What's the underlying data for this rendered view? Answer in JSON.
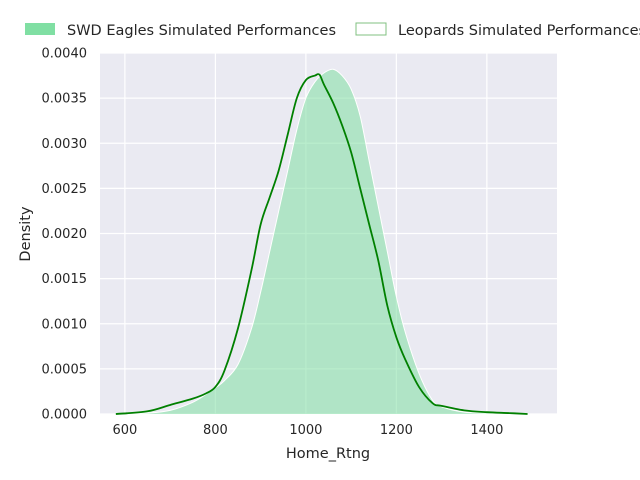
{
  "chart_data": {
    "type": "area",
    "title": "",
    "xlabel": "Home_Rtng",
    "ylabel": "Density",
    "xlim": [
      545,
      1555
    ],
    "ylim": [
      0,
      0.004
    ],
    "xticks": [
      600,
      800,
      1000,
      1200,
      1400
    ],
    "xtick_labels": [
      "600",
      "800",
      "1000",
      "1200",
      "1400"
    ],
    "yticks": [
      0,
      0.0005,
      0.001,
      0.0015,
      0.002,
      0.0025,
      0.003,
      0.0035,
      0.004
    ],
    "ytick_labels": [
      "0.0000",
      "0.0005",
      "0.0010",
      "0.0015",
      "0.0020",
      "0.0025",
      "0.0030",
      "0.0035",
      "0.0040"
    ],
    "grid": true,
    "legend_position": "top",
    "series": [
      {
        "name": "SWD Eagles Simulated Performances",
        "kind": "filled-kde",
        "color": "#80dfa3",
        "fill_opacity": 0.55,
        "x": [
          580,
          650,
          700,
          750,
          780,
          800,
          820,
          850,
          880,
          900,
          920,
          940,
          960,
          980,
          1000,
          1020,
          1040,
          1060,
          1080,
          1100,
          1120,
          1140,
          1160,
          1180,
          1200,
          1220,
          1250,
          1280,
          1300,
          1350,
          1400,
          1450,
          1490
        ],
        "y": [
          0.0,
          1e-05,
          4e-05,
          0.00013,
          0.00022,
          0.00029,
          0.00037,
          0.00055,
          0.00095,
          0.00135,
          0.0018,
          0.00225,
          0.0027,
          0.00315,
          0.0035,
          0.00368,
          0.00378,
          0.00382,
          0.00375,
          0.0036,
          0.0033,
          0.0028,
          0.0023,
          0.0018,
          0.0013,
          0.0009,
          0.00045,
          0.00015,
          8e-05,
          2e-05,
          1e-05,
          0.0,
          0.0
        ]
      },
      {
        "name": "Leopards Simulated Performances",
        "kind": "line-kde",
        "color": "#008000",
        "x": [
          580,
          650,
          700,
          750,
          780,
          800,
          820,
          850,
          880,
          900,
          920,
          940,
          960,
          980,
          1000,
          1020,
          1030,
          1040,
          1060,
          1080,
          1100,
          1120,
          1140,
          1160,
          1180,
          1200,
          1220,
          1250,
          1280,
          1300,
          1350,
          1400,
          1450,
          1490
        ],
        "y": [
          0.0,
          3e-05,
          0.0001,
          0.00017,
          0.00023,
          0.0003,
          0.00048,
          0.00095,
          0.0016,
          0.0021,
          0.0024,
          0.0027,
          0.0031,
          0.0035,
          0.0037,
          0.00375,
          0.00376,
          0.00365,
          0.00345,
          0.0032,
          0.0029,
          0.0025,
          0.0021,
          0.0017,
          0.0012,
          0.00085,
          0.0006,
          0.0003,
          0.00012,
          9e-05,
          4e-05,
          2e-05,
          1e-05,
          0.0
        ]
      }
    ]
  }
}
